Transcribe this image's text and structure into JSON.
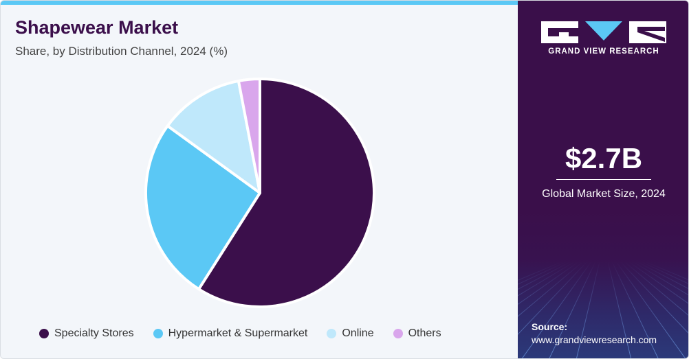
{
  "chart_data": {
    "type": "pie",
    "title": "Shapewear Market",
    "subtitle": "Share, by Distribution Channel, 2024 (%)",
    "categories": [
      "Specialty Stores",
      "Hypermarket & Supermarket",
      "Online",
      "Others"
    ],
    "values": [
      59,
      26,
      12,
      3
    ],
    "colors": [
      "#3b0f4b",
      "#5bc8f5",
      "#bfe8fb",
      "#d9a6ec"
    ],
    "legend_position": "bottom"
  },
  "brand": {
    "logo_text": "GRAND VIEW RESEARCH",
    "logo_icon": "grand-view-research-logo"
  },
  "summary": {
    "market_size": "$2.7B",
    "market_size_label": "Global Market Size, 2024"
  },
  "source": {
    "label": "Source:",
    "url": "www.grandviewresearch.com"
  },
  "colors": {
    "panel": "#3a0f4a",
    "accent": "#5bc8f5"
  }
}
